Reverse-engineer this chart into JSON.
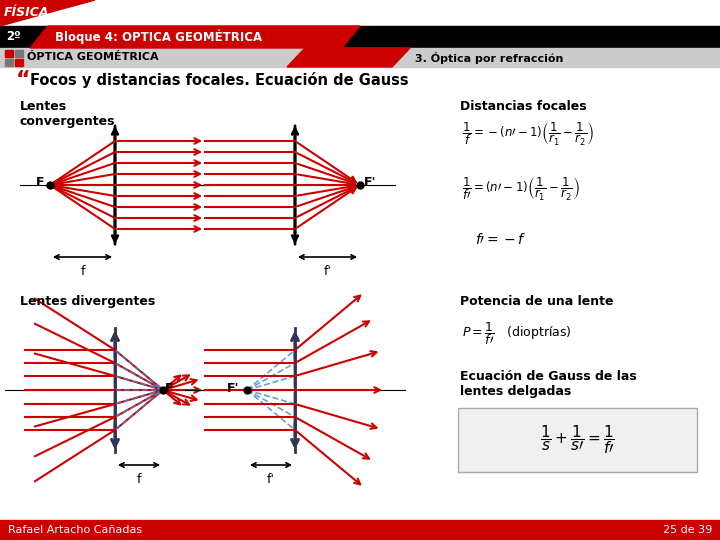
{
  "title_fisica": "FÍSICA",
  "title_2o": "2º",
  "title_bloque": "Bloque 4: OPTICA GEOMÉTRICA",
  "title_optica": "ÓPTICA GEOMÉTRICA",
  "title_section": "3. Óptica por refracción",
  "section_title": "Focos y distancias focales. Ecuación de Gauss",
  "lentes_convergentes": "Lentes\nconvergentes",
  "lentes_divergentes": "Lentes divergentes",
  "distancias_focales": "Distancias focales",
  "potencia": "Potencia de una lente",
  "ecuacion_gauss": "Ecuación de Gauss de las\nlentes delgadas",
  "footer_left": "Rafael Artacho Cañadas",
  "footer_right": "25 de 39",
  "red": "#CC0000",
  "black": "#000000",
  "white": "#FFFFFF",
  "darkgray": "#333355",
  "blue_dash": "#4488CC"
}
